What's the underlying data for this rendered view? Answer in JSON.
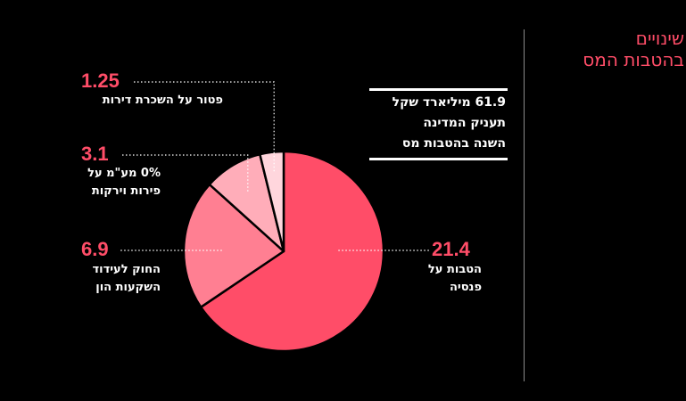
{
  "title": {
    "line1": "שינויים",
    "line2": "בהטבות המס"
  },
  "summary": {
    "line1": "61.9 מיליארד שקל",
    "line2": "תעניק המדינה",
    "line3": "השנה בהטבות מס"
  },
  "labels": [
    {
      "value": "21.4",
      "line1": "הטבות על",
      "line2": "פנסיה"
    },
    {
      "value": "6.9",
      "line1": "החוק לעידוד",
      "line2": "השקעות הון"
    },
    {
      "value": "3.1",
      "line1": "0% מע\"מ על",
      "line2": "פירות וירקות"
    },
    {
      "value": "1.25",
      "line1": "פטור על השכרת דירות",
      "line2": ""
    }
  ],
  "colors": {
    "accent": "#ff4d68",
    "background": "#000000"
  },
  "chart_data": {
    "type": "pie",
    "categories": [
      "הטבות על פנסיה",
      "החוק לעידוד השקעות הון",
      "0% מע\"מ על פירות וירקות",
      "פטור על השכרת דירות"
    ],
    "values": [
      21.4,
      6.9,
      3.1,
      1.25
    ],
    "colors": [
      "#ff4d68",
      "#ff7f92",
      "#ffadb9",
      "#ffd6dd"
    ],
    "slice_border": "#000000",
    "start": "top, clockwise"
  }
}
